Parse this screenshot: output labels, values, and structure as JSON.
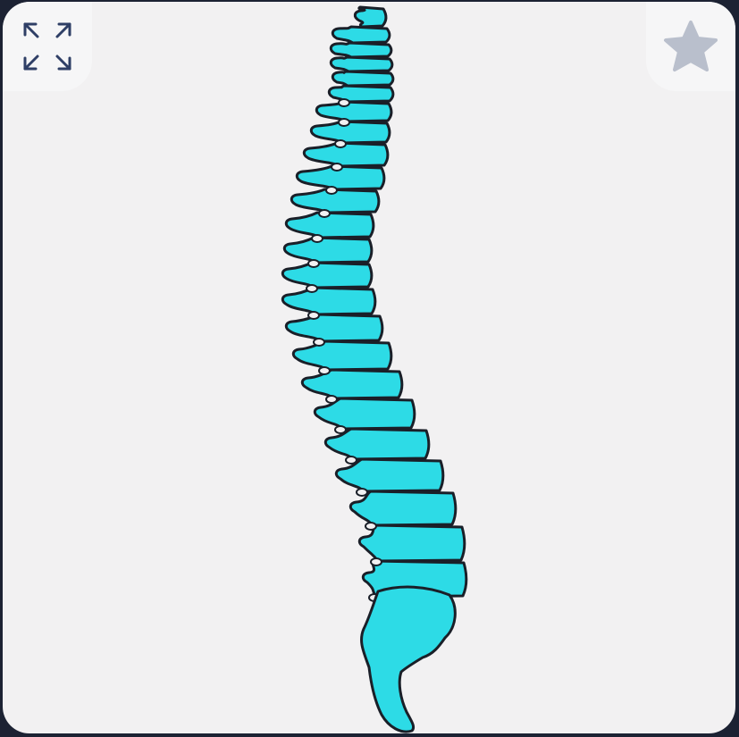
{
  "toolbar": {
    "expand_icon": "expand-arrows-icon",
    "favorite_icon": "star-icon"
  },
  "figure": {
    "subject": "spine-illustration"
  },
  "colors": {
    "card_background": "#f2f1f2",
    "frame_background": "#1c2233",
    "bone_fill": "#2ddbe6",
    "outline": "#1a1f28",
    "icon_navy": "#2f3f66",
    "star_gray": "#b9bfcc"
  }
}
